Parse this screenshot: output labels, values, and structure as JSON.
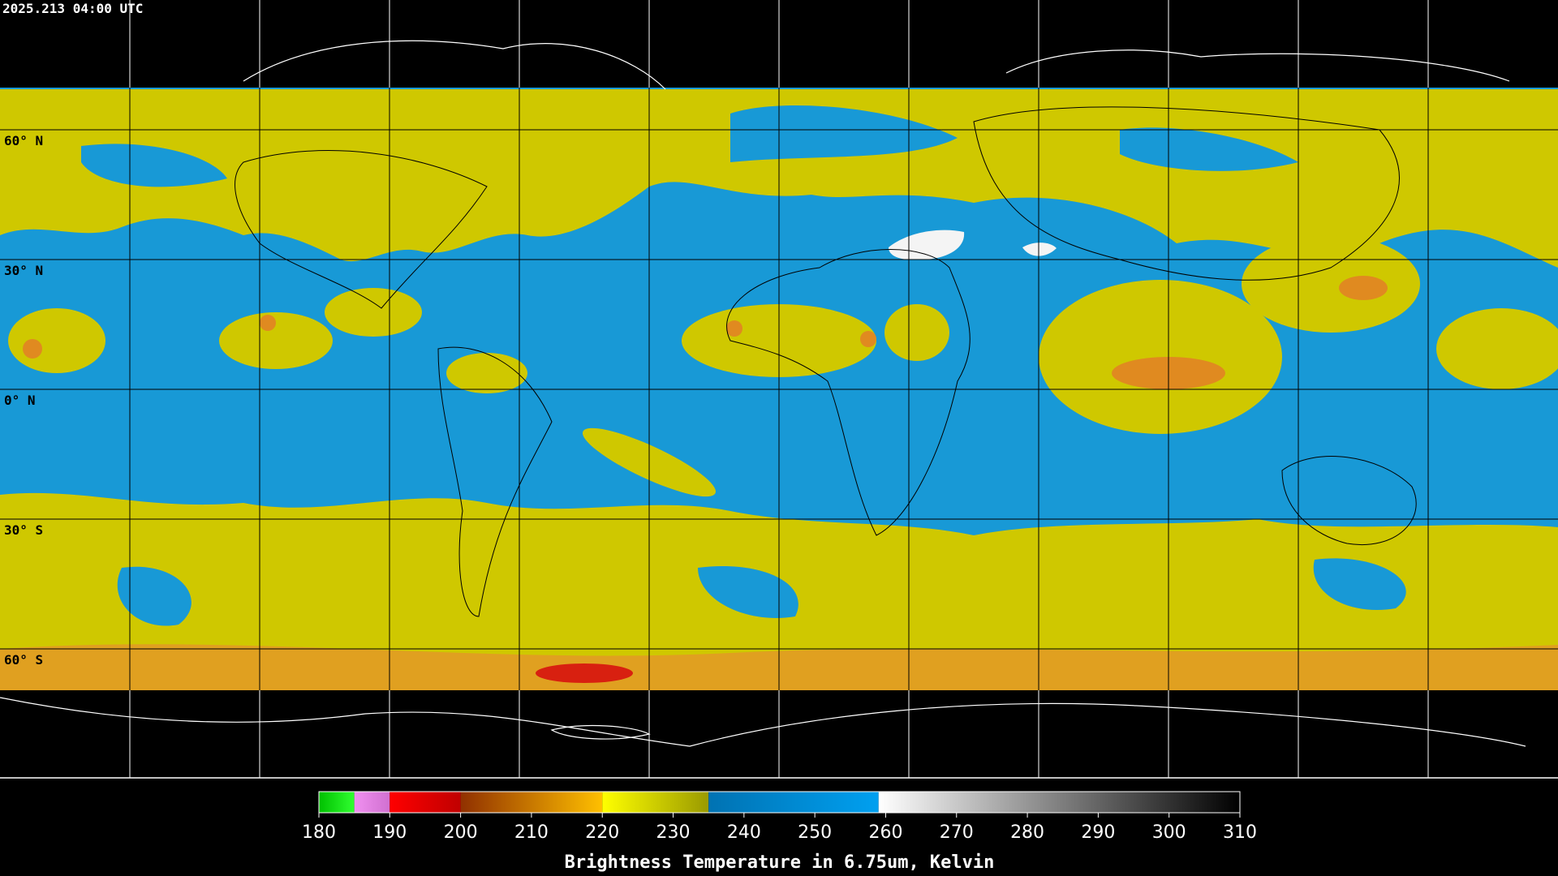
{
  "header": {
    "timestamp": "2025.213 04:00 UTC"
  },
  "map": {
    "lat_labels": [
      "60° N",
      "30° N",
      "0° N",
      "30° S",
      "60° S"
    ]
  },
  "colorbar": {
    "range": [
      180,
      310
    ],
    "ticks": [
      180,
      190,
      200,
      210,
      220,
      230,
      240,
      250,
      260,
      270,
      280,
      290,
      300,
      310
    ],
    "label": "Brightness Temperature in 6.75um, Kelvin",
    "segments": [
      {
        "range": [
          180,
          185
        ],
        "colors": [
          "#00c000",
          "#30ff30"
        ]
      },
      {
        "range": [
          185,
          190
        ],
        "colors": [
          "#f090f0",
          "#d070d0"
        ]
      },
      {
        "range": [
          190,
          200
        ],
        "colors": [
          "#ff0000",
          "#c00000"
        ]
      },
      {
        "range": [
          200,
          220
        ],
        "colors": [
          "#903000",
          "#ffc000"
        ]
      },
      {
        "range": [
          220,
          235
        ],
        "colors": [
          "#ffff00",
          "#9a9a00"
        ]
      },
      {
        "range": [
          235,
          259
        ],
        "colors": [
          "#0072b2",
          "#00a0f0"
        ]
      },
      {
        "range": [
          259,
          310
        ],
        "colors": [
          "#ffffff",
          "#000000"
        ]
      }
    ]
  }
}
